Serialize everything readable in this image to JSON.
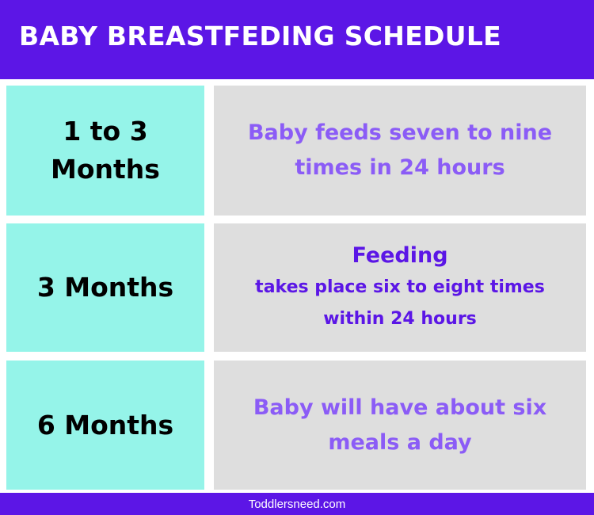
{
  "header": {
    "title": "BABY BREASTFEDING SCHEDULE"
  },
  "rows": [
    {
      "age_line1": "1 to 3",
      "age_line2": "Months",
      "description": "Baby feeds seven to nine times in 24 hours"
    },
    {
      "age": "3 Months",
      "heading": "Feeding",
      "description": "takes place six to eight times within 24 hours"
    },
    {
      "age": "6 Months",
      "description": "Baby will have about six meals a day"
    }
  ],
  "footer": {
    "text": "Toddlersneed.com"
  },
  "colors": {
    "header_bg": "#5c16e6",
    "age_cell_bg": "#95f4e9",
    "desc_cell_bg": "#dedede",
    "desc_text_light": "#8b5cf6",
    "desc_text_dark": "#5b16e6"
  }
}
